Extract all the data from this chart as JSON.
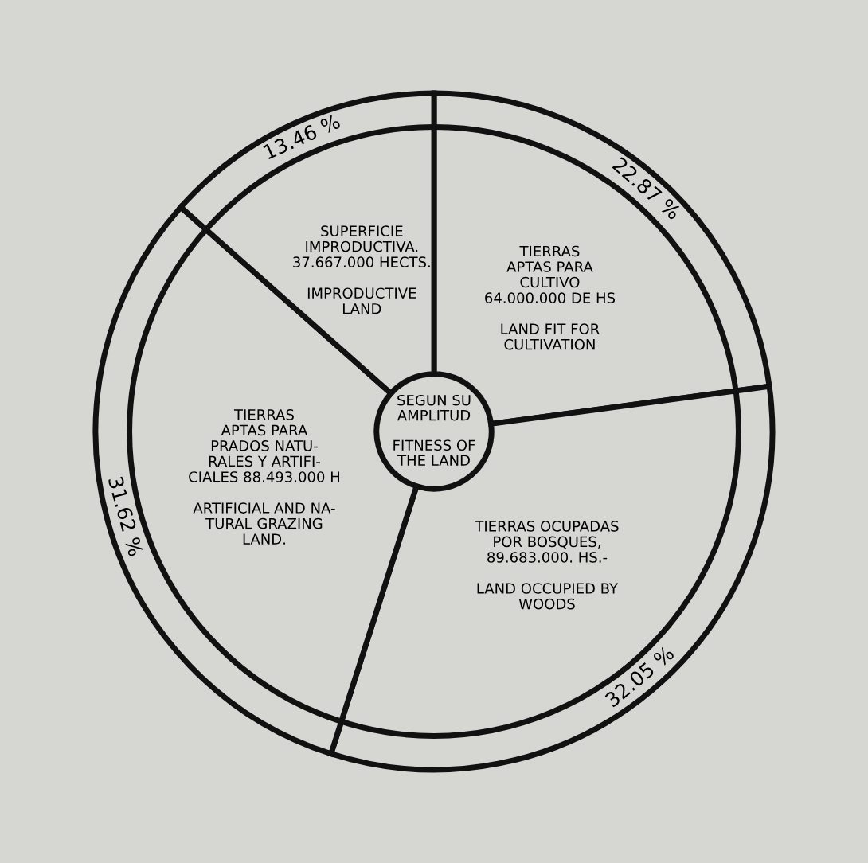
{
  "chart_data": {
    "type": "donut",
    "title": "SEGUN SU\nAMPLITUD\n\nFITNESS OF\nTHE LAND",
    "categories": [
      "TIERRAS\nAPTAS PARA\nCULTIVO\n64.000.000 DE HS\n\nLAND FIT FOR\nCULTIVATION",
      "TIERRAS OCUPADAS\nPOR BOSQUES,\n89.683.000. HS.-\n\nLAND OCCUPIED BY\nWOODS",
      "TIERRAS\nAPTAS PARA\nPRADOS NATU-\nRALES Y ARTIFI-\nCIALES 88.493.000 H\n\nARTIFICIAL AND NA-\nTURAL GRAZING\nLAND.",
      "SUPERFICIE\nIMPRODUCTIVA.\n37.667.000 HECTS.\n\nIMPRODUCTIVE\nLAND"
    ],
    "values": [
      22.87,
      32.05,
      31.62,
      13.46
    ],
    "value_labels": [
      "22.87 %",
      "32.05 %",
      "31.62 %",
      "13.46 %"
    ],
    "colors": [
      "#d6d6d3",
      "#d6d6d3",
      "#d6d6d3",
      "#d6d6d3"
    ]
  }
}
